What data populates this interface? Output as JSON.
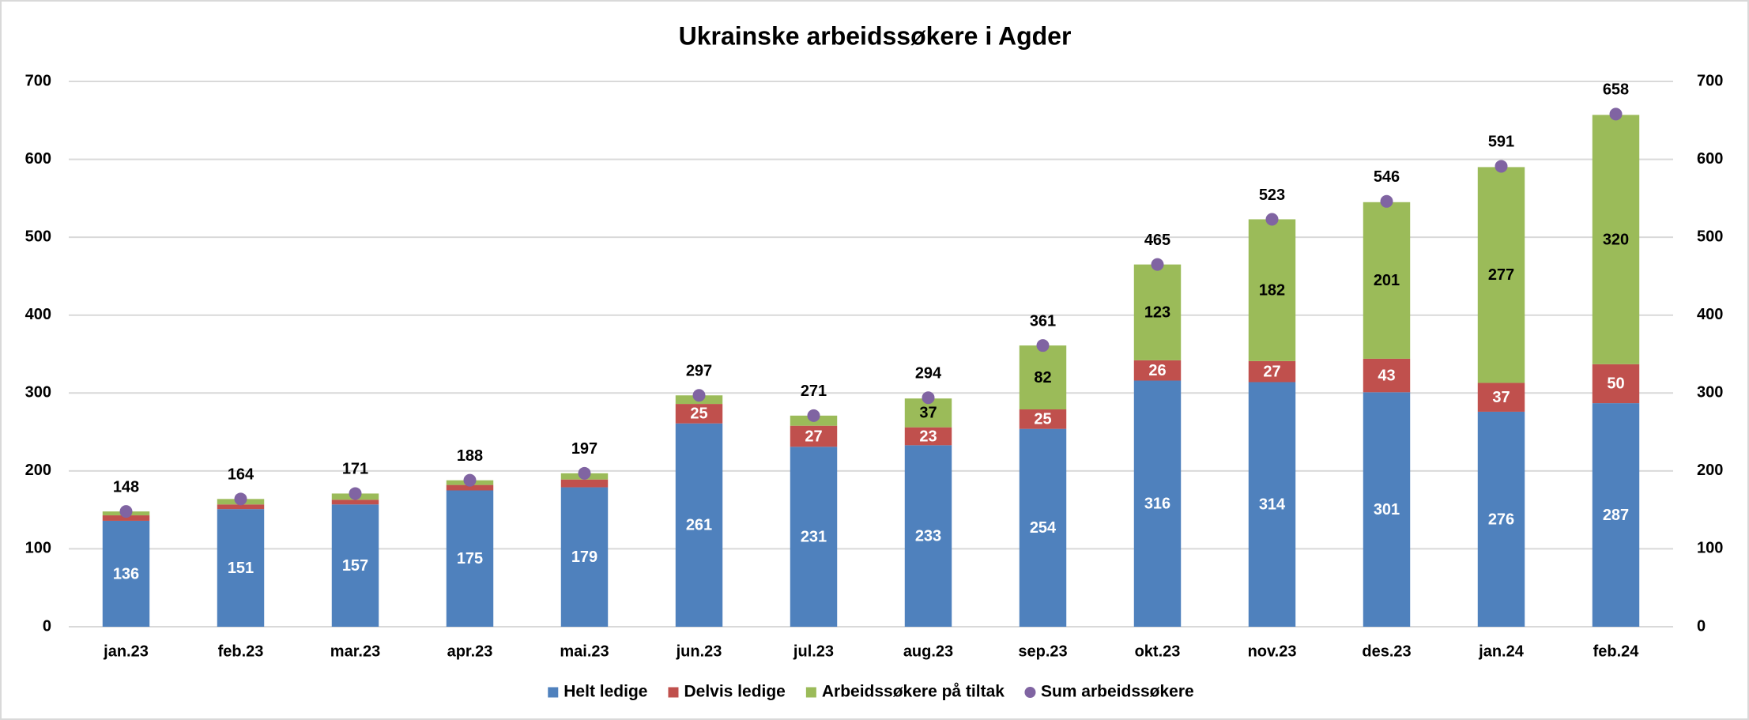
{
  "chart_data": {
    "type": "bar",
    "stacked": true,
    "title": "Ukrainske arbeidssøkere i Agder",
    "categories": [
      "jan.23",
      "feb.23",
      "mar.23",
      "apr.23",
      "mai.23",
      "jun.23",
      "jul.23",
      "aug.23",
      "sep.23",
      "okt.23",
      "nov.23",
      "des.23",
      "jan.24",
      "feb.24"
    ],
    "series": [
      {
        "name": "Helt ledige",
        "color": "#4f81bd",
        "label_color": "#ffffff",
        "values": [
          136,
          151,
          157,
          175,
          179,
          261,
          231,
          233,
          254,
          316,
          314,
          301,
          276,
          287
        ],
        "value_labels": [
          "136",
          "151",
          "157",
          "175",
          "179",
          "261",
          "231",
          "233",
          "254",
          "316",
          "314",
          "301",
          "276",
          "287"
        ]
      },
      {
        "name": "Delvis ledige",
        "color": "#c0504d",
        "label_color": "#ffffff",
        "values": [
          7,
          6,
          6,
          7,
          10,
          25,
          27,
          23,
          25,
          26,
          27,
          43,
          37,
          50
        ],
        "value_labels": [
          null,
          null,
          null,
          null,
          null,
          "25",
          "27",
          "23",
          "25",
          "26",
          "27",
          "43",
          "37",
          "50"
        ]
      },
      {
        "name": "Arbeidssøkere på tiltak",
        "color": "#9bbb59",
        "label_color": "#000000",
        "values": [
          5,
          7,
          8,
          6,
          8,
          11,
          13,
          37,
          82,
          123,
          182,
          201,
          277,
          320
        ],
        "value_labels": [
          null,
          null,
          null,
          null,
          null,
          null,
          null,
          "37",
          "82",
          "123",
          "182",
          "201",
          "277",
          "320"
        ]
      },
      {
        "name": "Sum arbeidssøkere",
        "type": "scatter",
        "color": "#8064a2",
        "label_color": "#000000",
        "values": [
          148,
          164,
          171,
          188,
          197,
          297,
          271,
          294,
          361,
          465,
          523,
          546,
          591,
          658
        ]
      }
    ],
    "ylim": [
      0,
      700
    ],
    "yticks": [
      0,
      100,
      200,
      300,
      400,
      500,
      600,
      700
    ],
    "y2lim": [
      0,
      700
    ],
    "y2ticks": [
      0,
      100,
      200,
      300,
      400,
      500,
      600,
      700
    ],
    "grid": true,
    "legend": "bottom"
  }
}
